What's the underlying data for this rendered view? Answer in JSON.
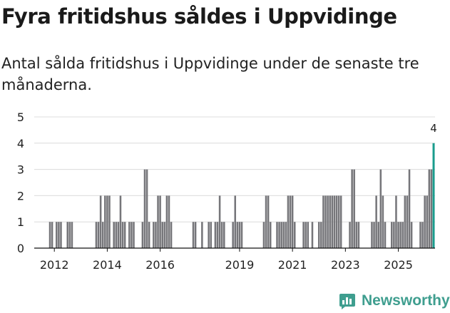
{
  "header": {
    "title": "Fyra fritidshus såldes i Uppvidinge",
    "subtitle": "Antal sålda fritidshus i Uppvidinge under de senaste tre månaderna."
  },
  "logo": {
    "text": "Newsworthy",
    "icon": "newsworthy-chart-icon"
  },
  "colors": {
    "bar": "#76767a",
    "highlight": "#1a9c8d",
    "grid": "#dcdcdc",
    "axis": "#111111",
    "brand": "#3f9e8f"
  },
  "chart_data": {
    "type": "bar",
    "title": "Fyra fritidshus såldes i Uppvidinge",
    "xlabel": "",
    "ylabel": "",
    "ylim": [
      0,
      5
    ],
    "yticks": [
      "0",
      "1",
      "2",
      "3",
      "4",
      "5"
    ],
    "xticks": [
      {
        "label": "2012",
        "month": 12
      },
      {
        "label": "2014",
        "month": 36
      },
      {
        "label": "2016",
        "month": 60
      },
      {
        "label": "2019",
        "month": 96
      },
      {
        "label": "2021",
        "month": 120
      },
      {
        "label": "2023",
        "month": 144
      },
      {
        "label": "2025",
        "month": 168
      }
    ],
    "start": "2011-01",
    "months": 178,
    "series": [
      {
        "name": "Sålda fritidshus",
        "points": [
          [
            10,
            1
          ],
          [
            11,
            1
          ],
          [
            13,
            1
          ],
          [
            14,
            1
          ],
          [
            15,
            1
          ],
          [
            18,
            1
          ],
          [
            19,
            1
          ],
          [
            20,
            1
          ],
          [
            31,
            1
          ],
          [
            32,
            1
          ],
          [
            33,
            2
          ],
          [
            34,
            1
          ],
          [
            35,
            2
          ],
          [
            36,
            2
          ],
          [
            37,
            2
          ],
          [
            39,
            1
          ],
          [
            40,
            1
          ],
          [
            41,
            1
          ],
          [
            42,
            2
          ],
          [
            43,
            1
          ],
          [
            44,
            1
          ],
          [
            46,
            1
          ],
          [
            47,
            1
          ],
          [
            48,
            1
          ],
          [
            52,
            1
          ],
          [
            53,
            3
          ],
          [
            54,
            3
          ],
          [
            55,
            1
          ],
          [
            57,
            1
          ],
          [
            58,
            1
          ],
          [
            59,
            2
          ],
          [
            60,
            2
          ],
          [
            61,
            1
          ],
          [
            62,
            1
          ],
          [
            63,
            2
          ],
          [
            64,
            2
          ],
          [
            65,
            1
          ],
          [
            75,
            1
          ],
          [
            76,
            1
          ],
          [
            79,
            1
          ],
          [
            82,
            1
          ],
          [
            83,
            1
          ],
          [
            85,
            1
          ],
          [
            86,
            1
          ],
          [
            87,
            2
          ],
          [
            88,
            1
          ],
          [
            89,
            1
          ],
          [
            93,
            1
          ],
          [
            94,
            2
          ],
          [
            95,
            1
          ],
          [
            96,
            1
          ],
          [
            97,
            1
          ],
          [
            107,
            1
          ],
          [
            108,
            2
          ],
          [
            109,
            2
          ],
          [
            110,
            1
          ],
          [
            113,
            1
          ],
          [
            114,
            1
          ],
          [
            115,
            1
          ],
          [
            116,
            1
          ],
          [
            117,
            1
          ],
          [
            118,
            2
          ],
          [
            119,
            2
          ],
          [
            120,
            2
          ],
          [
            121,
            1
          ],
          [
            125,
            1
          ],
          [
            126,
            1
          ],
          [
            127,
            1
          ],
          [
            129,
            1
          ],
          [
            132,
            1
          ],
          [
            133,
            1
          ],
          [
            134,
            2
          ],
          [
            135,
            2
          ],
          [
            136,
            2
          ],
          [
            137,
            2
          ],
          [
            138,
            2
          ],
          [
            139,
            2
          ],
          [
            140,
            2
          ],
          [
            141,
            2
          ],
          [
            142,
            2
          ],
          [
            146,
            1
          ],
          [
            147,
            3
          ],
          [
            148,
            3
          ],
          [
            149,
            1
          ],
          [
            150,
            1
          ],
          [
            156,
            1
          ],
          [
            157,
            1
          ],
          [
            158,
            2
          ],
          [
            159,
            1
          ],
          [
            160,
            3
          ],
          [
            161,
            2
          ],
          [
            162,
            1
          ],
          [
            165,
            1
          ],
          [
            166,
            1
          ],
          [
            167,
            2
          ],
          [
            168,
            1
          ],
          [
            169,
            1
          ],
          [
            170,
            1
          ],
          [
            171,
            2
          ],
          [
            172,
            2
          ],
          [
            173,
            3
          ],
          [
            174,
            1
          ],
          [
            178,
            1
          ],
          [
            179,
            1
          ],
          [
            180,
            2
          ],
          [
            181,
            2
          ],
          [
            182,
            3
          ],
          [
            183,
            3
          ]
        ]
      }
    ],
    "highlight": {
      "month": 184,
      "value": 4,
      "label": "4"
    }
  }
}
